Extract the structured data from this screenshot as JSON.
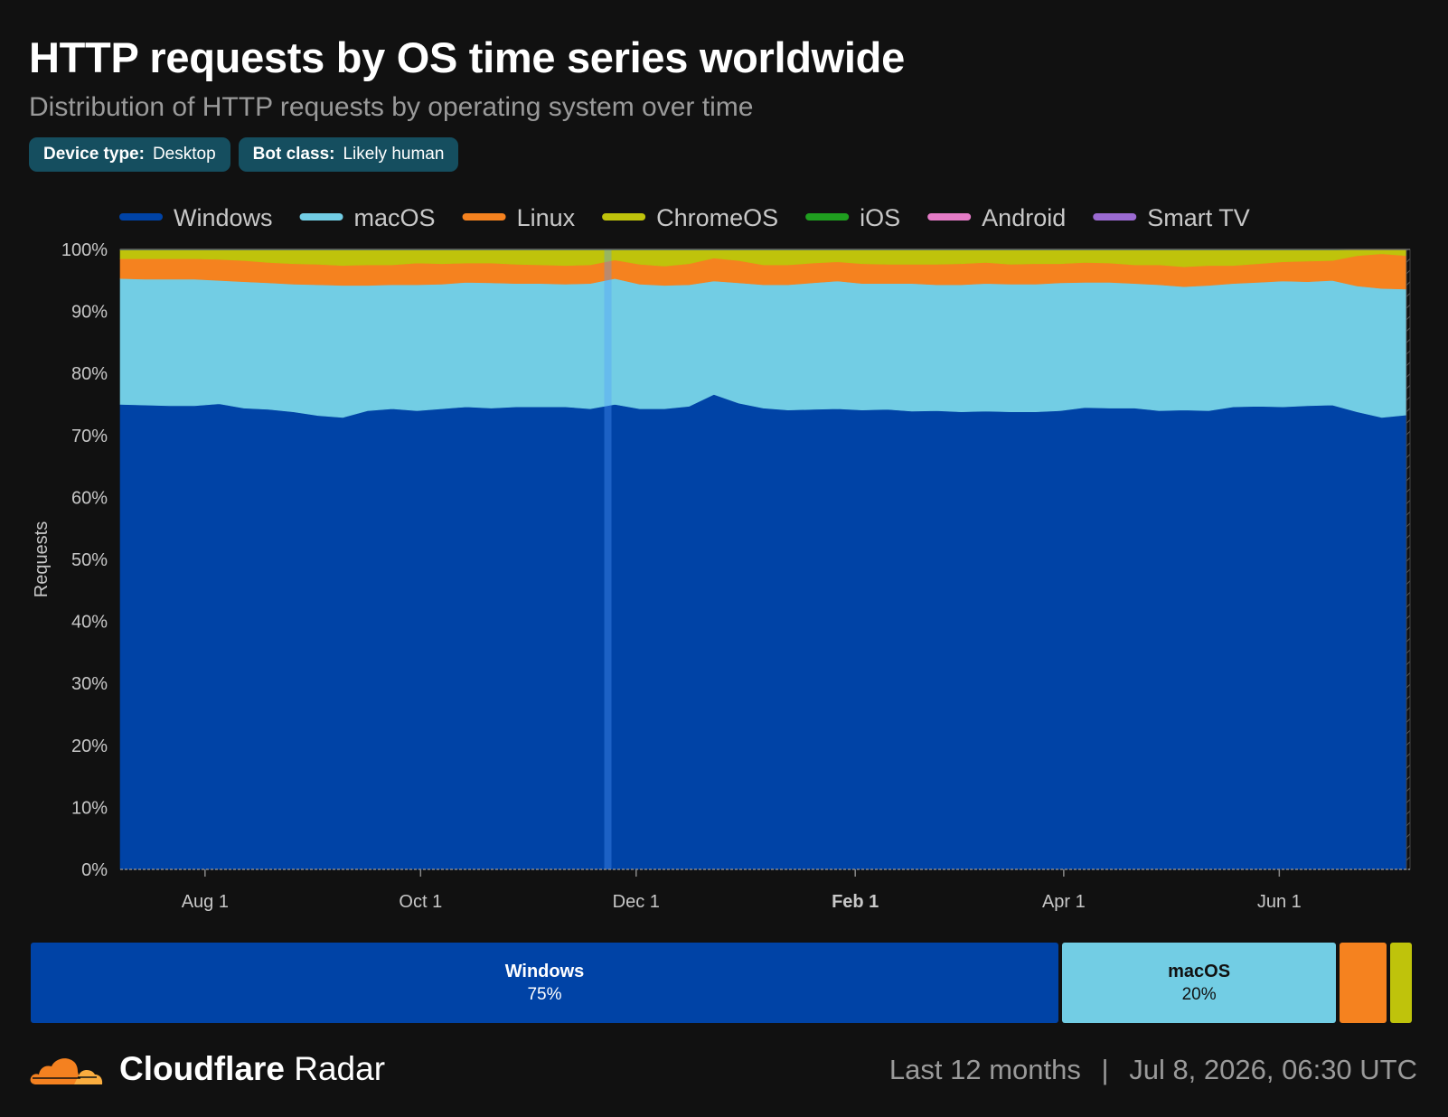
{
  "header": {
    "title": "HTTP requests by OS time series worldwide",
    "subtitle": "Distribution of HTTP requests by operating system over time"
  },
  "filters": [
    {
      "key": "Device type:",
      "value": "Desktop"
    },
    {
      "key": "Bot class:",
      "value": "Likely human"
    }
  ],
  "chart_data": {
    "type": "area",
    "stacked": true,
    "ylabel": "Requests",
    "ylim": [
      0,
      100
    ],
    "yticks": [
      "0%",
      "10%",
      "20%",
      "30%",
      "40%",
      "50%",
      "60%",
      "70%",
      "80%",
      "90%",
      "100%"
    ],
    "x_range": [
      "2025-07-08",
      "2026-07-08"
    ],
    "xticks": [
      {
        "label": "Aug 1",
        "date": "2025-08-01",
        "bold": false
      },
      {
        "label": "Oct 1",
        "date": "2025-10-01",
        "bold": false
      },
      {
        "label": "Dec 1",
        "date": "2025-12-01",
        "bold": false
      },
      {
        "label": "Feb 1",
        "date": "2026-02-01",
        "bold": true
      },
      {
        "label": "Apr 1",
        "date": "2026-04-01",
        "bold": false
      },
      {
        "label": "Jun 1",
        "date": "2026-06-01",
        "bold": false
      }
    ],
    "grid": false,
    "legend_position": "top",
    "x": [
      "2025-07-08",
      "2025-07-15",
      "2025-07-22",
      "2025-07-29",
      "2025-08-05",
      "2025-08-12",
      "2025-08-19",
      "2025-08-26",
      "2025-09-02",
      "2025-09-09",
      "2025-09-16",
      "2025-09-23",
      "2025-09-30",
      "2025-10-07",
      "2025-10-14",
      "2025-10-21",
      "2025-10-28",
      "2025-11-04",
      "2025-11-11",
      "2025-11-18",
      "2025-11-25",
      "2025-12-02",
      "2025-12-09",
      "2025-12-16",
      "2025-12-23",
      "2025-12-30",
      "2026-01-06",
      "2026-01-13",
      "2026-01-20",
      "2026-01-27",
      "2026-02-03",
      "2026-02-10",
      "2026-02-17",
      "2026-02-24",
      "2026-03-03",
      "2026-03-10",
      "2026-03-17",
      "2026-03-24",
      "2026-03-31",
      "2026-04-07",
      "2026-04-14",
      "2026-04-21",
      "2026-04-28",
      "2026-05-05",
      "2026-05-12",
      "2026-05-19",
      "2026-05-26",
      "2026-06-02",
      "2026-06-09",
      "2026-06-16",
      "2026-06-23",
      "2026-06-30",
      "2026-07-07"
    ],
    "series": [
      {
        "name": "Windows",
        "color": "#0043a6",
        "values": [
          75.0,
          74.9,
          74.8,
          74.8,
          75.1,
          74.4,
          74.2,
          73.8,
          73.2,
          72.9,
          74.0,
          74.3,
          74.0,
          74.3,
          74.6,
          74.4,
          74.6,
          74.6,
          74.6,
          74.3,
          75.0,
          74.3,
          74.3,
          74.7,
          76.6,
          75.2,
          74.4,
          74.1,
          74.2,
          74.3,
          74.1,
          74.2,
          73.9,
          74.0,
          73.8,
          73.9,
          73.8,
          73.8,
          74.0,
          74.5,
          74.4,
          74.4,
          74.0,
          74.1,
          74.0,
          74.6,
          74.7,
          74.6,
          74.8,
          74.9,
          73.8,
          72.9,
          73.3
        ]
      },
      {
        "name": "macOS",
        "color": "#72cde4",
        "values": [
          20.3,
          20.3,
          20.4,
          20.4,
          19.9,
          20.4,
          20.4,
          20.6,
          21.1,
          21.3,
          20.2,
          20.0,
          20.3,
          20.1,
          20.1,
          20.2,
          19.9,
          19.9,
          19.8,
          20.2,
          20.3,
          20.1,
          19.9,
          19.6,
          18.3,
          19.4,
          19.9,
          20.2,
          20.4,
          20.6,
          20.4,
          20.3,
          20.6,
          20.3,
          20.5,
          20.6,
          20.6,
          20.6,
          20.6,
          20.2,
          20.3,
          20.1,
          20.3,
          19.9,
          20.2,
          19.9,
          20.0,
          20.3,
          20.0,
          20.1,
          20.3,
          20.8,
          20.3
        ]
      },
      {
        "name": "Linux",
        "color": "#f5821f",
        "values": [
          3.2,
          3.3,
          3.3,
          3.3,
          3.4,
          3.4,
          3.3,
          3.3,
          3.3,
          3.2,
          3.3,
          3.2,
          3.5,
          3.3,
          3.1,
          3.2,
          3.1,
          3.0,
          3.0,
          3.0,
          3.0,
          3.2,
          3.1,
          3.4,
          3.7,
          3.6,
          3.2,
          3.2,
          3.2,
          3.1,
          3.2,
          3.1,
          3.1,
          3.3,
          3.4,
          3.4,
          3.2,
          3.3,
          3.1,
          3.2,
          3.1,
          3.0,
          3.2,
          3.2,
          3.2,
          2.9,
          3.0,
          3.1,
          3.3,
          3.2,
          4.9,
          5.6,
          5.4
        ]
      },
      {
        "name": "ChromeOS",
        "color": "#bfc30b",
        "values": [
          1.4,
          1.4,
          1.4,
          1.4,
          1.5,
          1.7,
          2.0,
          2.2,
          2.3,
          2.5,
          2.4,
          2.4,
          2.1,
          2.2,
          2.1,
          2.1,
          2.3,
          2.4,
          2.5,
          2.4,
          1.6,
          2.3,
          2.6,
          2.2,
          1.3,
          1.7,
          2.4,
          2.4,
          2.1,
          1.9,
          2.2,
          2.3,
          2.3,
          2.3,
          2.2,
          2.0,
          2.3,
          2.2,
          2.2,
          2.0,
          2.1,
          2.4,
          2.4,
          2.7,
          2.5,
          2.5,
          2.2,
          1.9,
          1.8,
          1.7,
          1.0,
          0.7,
          1.0
        ]
      },
      {
        "name": "iOS",
        "color": "#1f9e1f",
        "values": [
          0.05,
          0.05,
          0.05,
          0.05,
          0.05,
          0.05,
          0.05,
          0.05,
          0.05,
          0.05,
          0.05,
          0.05,
          0.05,
          0.05,
          0.05,
          0.05,
          0.05,
          0.05,
          0.05,
          0.05,
          0.05,
          0.05,
          0.05,
          0.05,
          0.05,
          0.05,
          0.05,
          0.05,
          0.05,
          0.05,
          0.05,
          0.05,
          0.05,
          0.05,
          0.05,
          0.05,
          0.05,
          0.05,
          0.05,
          0.05,
          0.05,
          0.05,
          0.05,
          0.05,
          0.05,
          0.05,
          0.05,
          0.05,
          0.05,
          0.05,
          0.05,
          0.05,
          0.05
        ]
      },
      {
        "name": "Android",
        "color": "#e47bc6",
        "values": [
          0.03,
          0.03,
          0.03,
          0.03,
          0.03,
          0.03,
          0.03,
          0.03,
          0.03,
          0.03,
          0.03,
          0.03,
          0.03,
          0.03,
          0.03,
          0.03,
          0.03,
          0.03,
          0.03,
          0.03,
          0.03,
          0.03,
          0.03,
          0.03,
          0.03,
          0.03,
          0.03,
          0.03,
          0.03,
          0.03,
          0.03,
          0.03,
          0.03,
          0.03,
          0.03,
          0.03,
          0.03,
          0.03,
          0.03,
          0.03,
          0.03,
          0.03,
          0.03,
          0.03,
          0.03,
          0.03,
          0.03,
          0.03,
          0.03,
          0.03,
          0.03,
          0.03,
          0.03
        ]
      },
      {
        "name": "Smart TV",
        "color": "#9b6ad1",
        "values": [
          0.02,
          0.02,
          0.02,
          0.02,
          0.02,
          0.02,
          0.02,
          0.02,
          0.02,
          0.02,
          0.02,
          0.02,
          0.02,
          0.02,
          0.02,
          0.02,
          0.02,
          0.02,
          0.02,
          0.02,
          0.02,
          0.02,
          0.02,
          0.02,
          0.02,
          0.02,
          0.02,
          0.02,
          0.02,
          0.02,
          0.02,
          0.02,
          0.02,
          0.02,
          0.02,
          0.02,
          0.02,
          0.02,
          0.02,
          0.02,
          0.02,
          0.02,
          0.02,
          0.02,
          0.02,
          0.02,
          0.02,
          0.02,
          0.02,
          0.02,
          0.02,
          0.02,
          0.02
        ]
      }
    ],
    "highlight_date": "2025-11-23"
  },
  "summary_bar": [
    {
      "name": "Windows",
      "value_label": "75%",
      "value": 75,
      "color": "#0043a6",
      "text_color": "#ffffff"
    },
    {
      "name": "macOS",
      "value_label": "20%",
      "value": 20,
      "color": "#72cde4",
      "text_color": "#111111"
    },
    {
      "name": "",
      "value_label": "",
      "value": 3.4,
      "color": "#f5821f",
      "text_color": "#111111"
    },
    {
      "name": "",
      "value_label": "",
      "value": 1.6,
      "color": "#bfc30b",
      "text_color": "#111111"
    }
  ],
  "footer": {
    "brand_bold": "Cloudflare",
    "brand_light": "Radar",
    "period": "Last 12 months",
    "separator": "|",
    "timestamp": "Jul 8, 2026, 06:30 UTC"
  }
}
